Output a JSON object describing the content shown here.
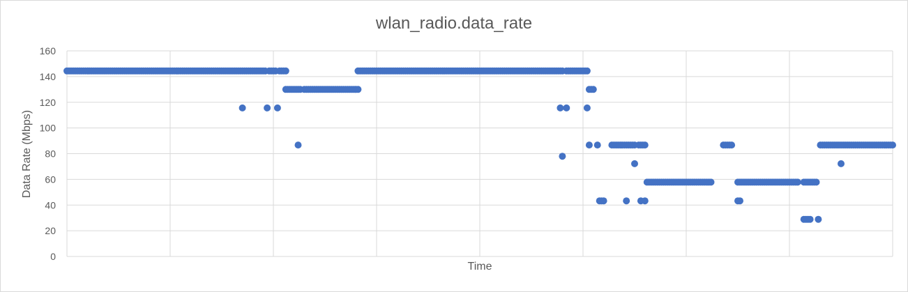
{
  "chart_data": {
    "type": "scatter",
    "title": "wlan_radio.data_rate",
    "xlabel": "Time",
    "ylabel": "Data Rate (Mbps)",
    "ylim": [
      0,
      160
    ],
    "yticks": [
      0,
      20,
      40,
      60,
      80,
      100,
      120,
      140,
      160
    ],
    "xlim": [
      0,
      400
    ],
    "x_tick_labels_shown": false,
    "grid": true,
    "legend": "none",
    "marker_color": "#4472c4",
    "segments": [
      {
        "x_start": 0,
        "x_end": 84,
        "y": 144.4,
        "step": 1
      },
      {
        "x_start": 85,
        "x_end": 96,
        "y": 144.4,
        "step": 1
      },
      {
        "x_start": 98,
        "x_end": 101,
        "y": 144.4,
        "step": 1
      },
      {
        "x_start": 103,
        "x_end": 106,
        "y": 144.4,
        "step": 1
      },
      {
        "x_start": 106,
        "x_end": 113,
        "y": 130,
        "step": 1
      },
      {
        "x_start": 115,
        "x_end": 141,
        "y": 130,
        "step": 1
      },
      {
        "x_start": 141,
        "x_end": 240,
        "y": 144.4,
        "step": 1
      },
      {
        "x_start": 242,
        "x_end": 252,
        "y": 144.4,
        "step": 1
      },
      {
        "x_start": 253,
        "x_end": 255,
        "y": 130,
        "step": 1
      },
      {
        "x_start": 264,
        "x_end": 275,
        "y": 86.7,
        "step": 1
      },
      {
        "x_start": 277,
        "x_end": 280,
        "y": 86.7,
        "step": 1
      },
      {
        "x_start": 281,
        "x_end": 312,
        "y": 57.8,
        "step": 1
      },
      {
        "x_start": 318,
        "x_end": 322,
        "y": 86.7,
        "step": 1
      },
      {
        "x_start": 325,
        "x_end": 354,
        "y": 57.8,
        "step": 1
      },
      {
        "x_start": 357,
        "x_end": 363,
        "y": 57.8,
        "step": 1
      },
      {
        "x_start": 365,
        "x_end": 400,
        "y": 86.7,
        "step": 1
      }
    ],
    "points": [
      {
        "x": 85,
        "y": 115.6
      },
      {
        "x": 97,
        "y": 115.6
      },
      {
        "x": 102,
        "y": 115.6
      },
      {
        "x": 112,
        "y": 86.7
      },
      {
        "x": 239,
        "y": 115.6
      },
      {
        "x": 240,
        "y": 78
      },
      {
        "x": 242,
        "y": 115.6
      },
      {
        "x": 252,
        "y": 115.6
      },
      {
        "x": 253,
        "y": 86.7
      },
      {
        "x": 257,
        "y": 86.7
      },
      {
        "x": 258,
        "y": 43.3
      },
      {
        "x": 259,
        "y": 43.3
      },
      {
        "x": 260,
        "y": 43.3
      },
      {
        "x": 271,
        "y": 43.3
      },
      {
        "x": 275,
        "y": 72.2
      },
      {
        "x": 278,
        "y": 43.3
      },
      {
        "x": 280,
        "y": 43.3
      },
      {
        "x": 325,
        "y": 43.3
      },
      {
        "x": 326,
        "y": 43.3
      },
      {
        "x": 357,
        "y": 28.9
      },
      {
        "x": 358,
        "y": 28.9
      },
      {
        "x": 359,
        "y": 28.9
      },
      {
        "x": 360,
        "y": 28.9
      },
      {
        "x": 364,
        "y": 28.9
      },
      {
        "x": 375,
        "y": 72.2
      }
    ]
  }
}
